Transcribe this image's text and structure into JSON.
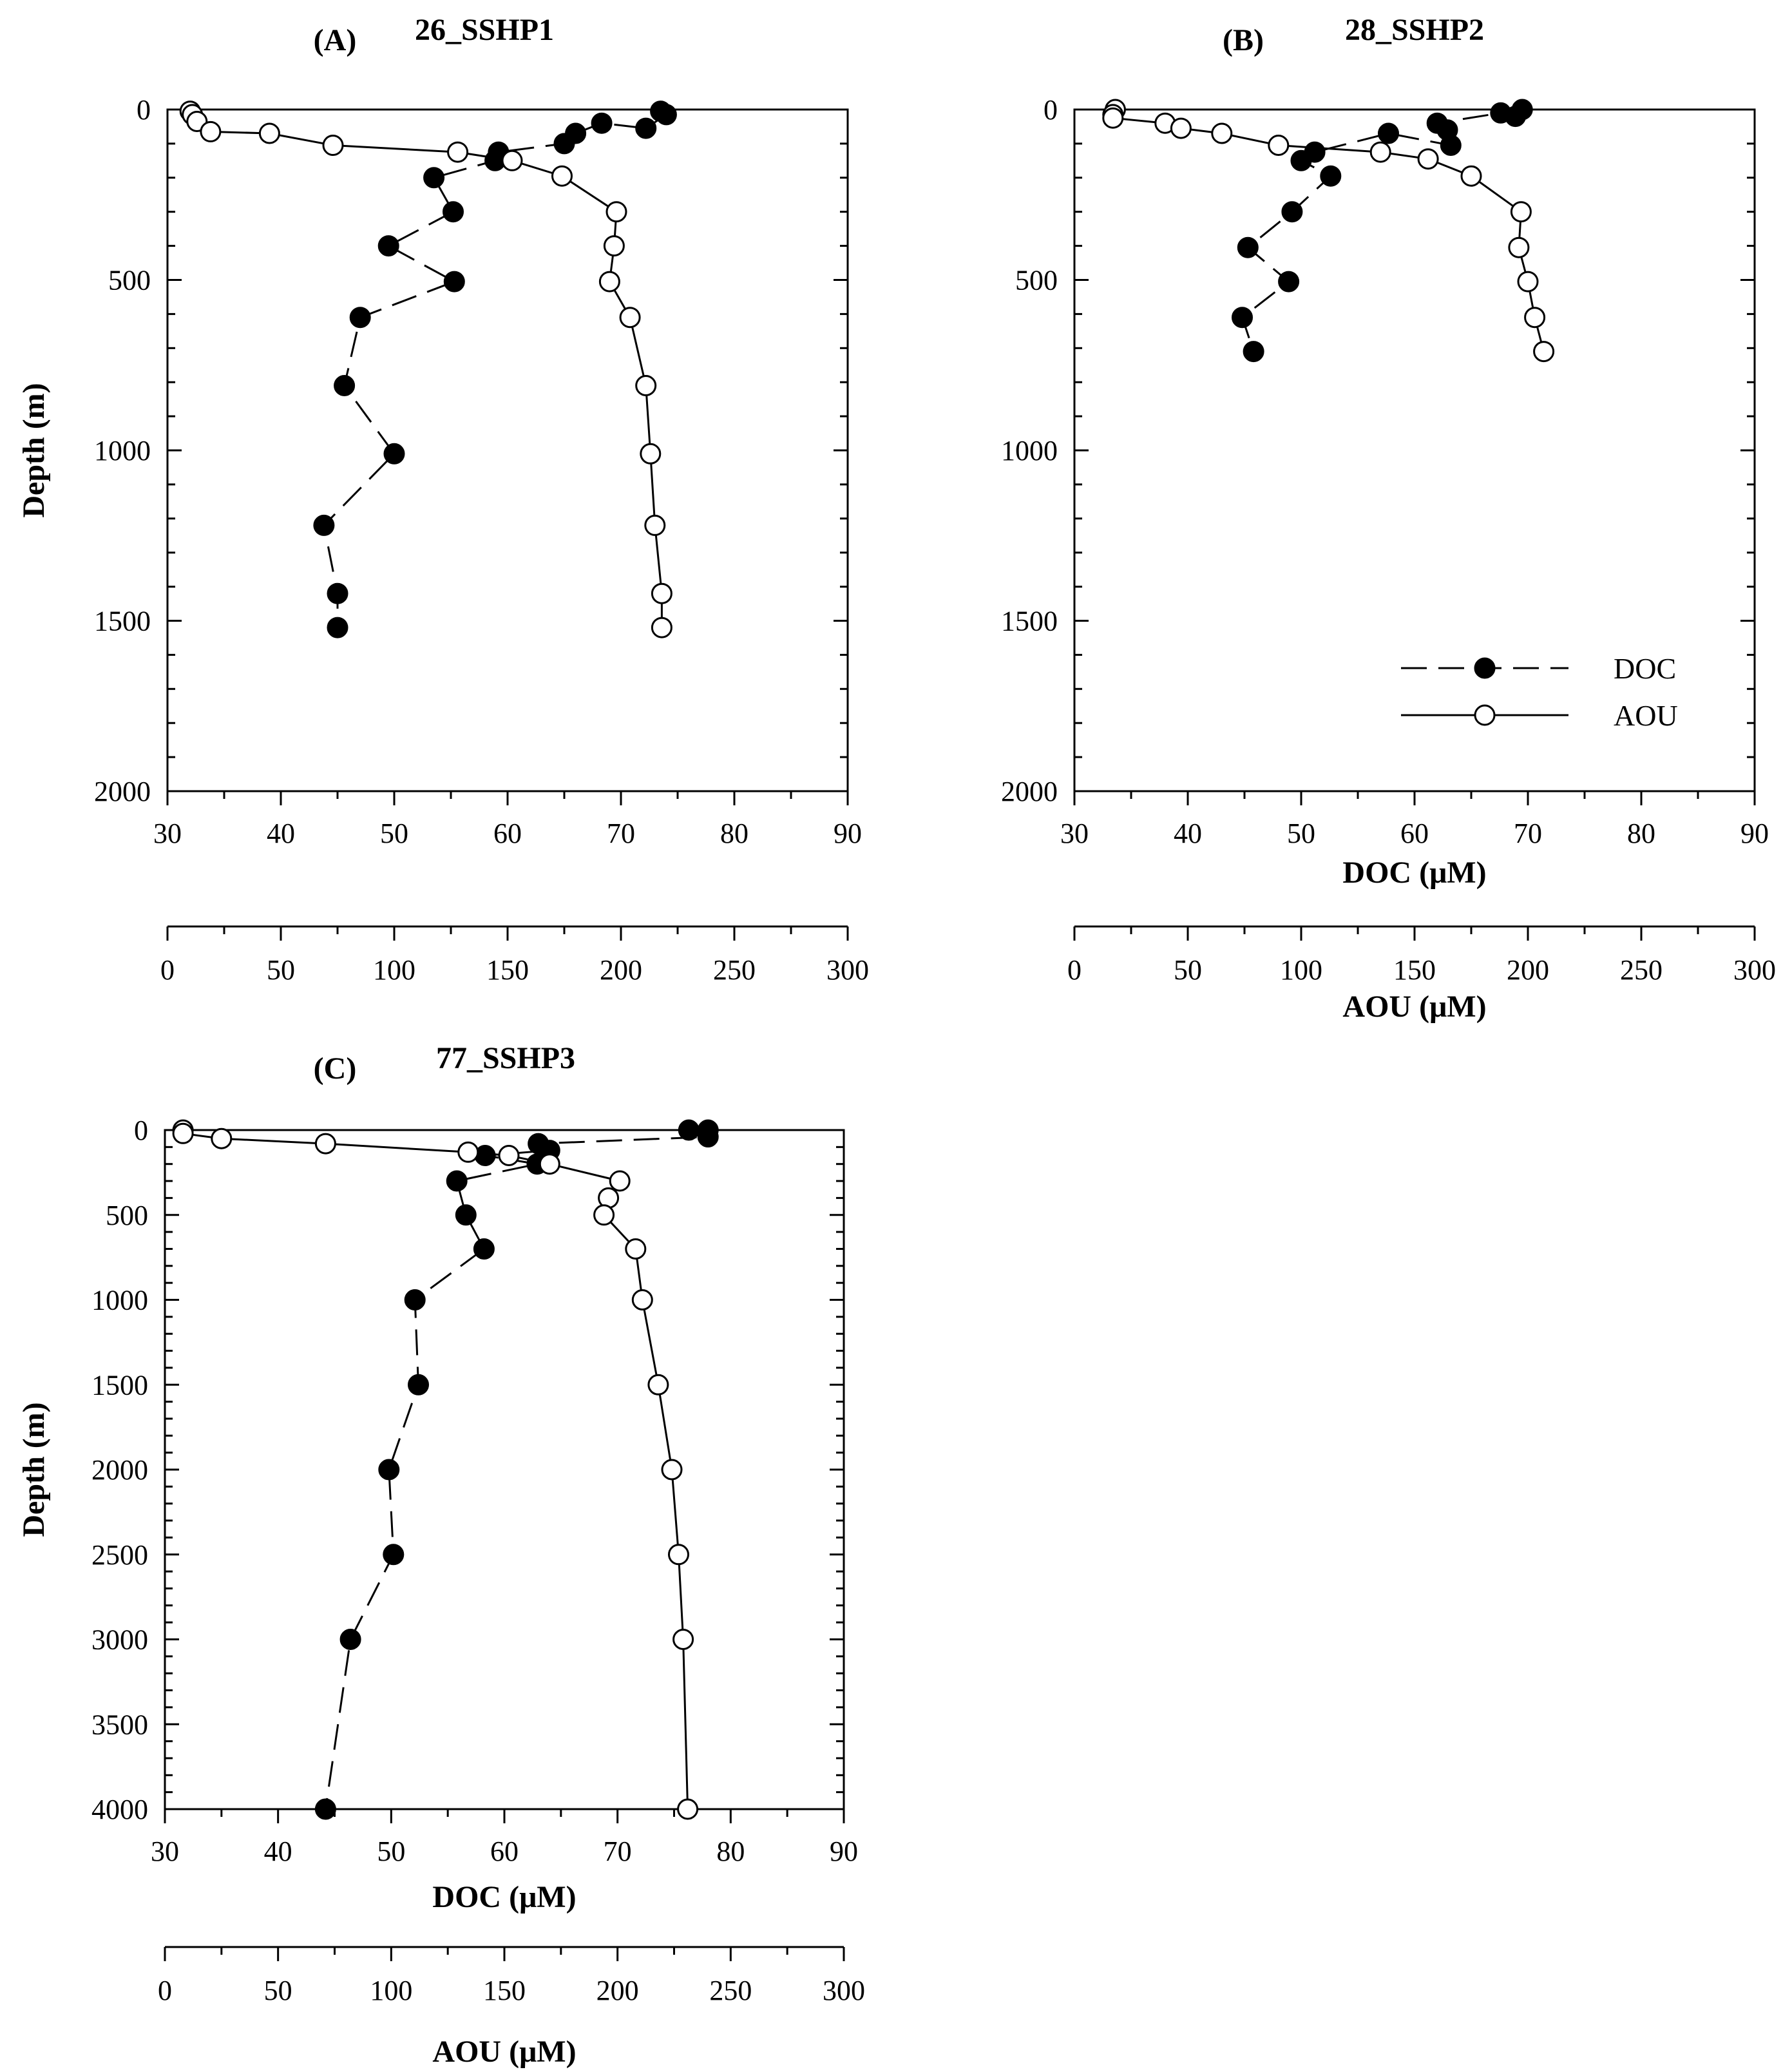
{
  "colors": {
    "ink": "#000000",
    "paper": "#ffffff"
  },
  "legend": [
    {
      "name": "DOC",
      "marker": "filled-circle",
      "line": "dashed"
    },
    {
      "name": "AOU",
      "marker": "open-circle",
      "line": "solid"
    }
  ],
  "chart_data": [
    {
      "type": "scatter",
      "panel_letter": "(A)",
      "title": "26_SSHP1",
      "ylabel": "Depth (m)",
      "xlabel": "",
      "xlabel2": "",
      "ylim": [
        0,
        2000
      ],
      "yinvert": true,
      "yticks": [
        0,
        500,
        1000,
        1500,
        2000
      ],
      "xlim": [
        30,
        90
      ],
      "xticks": [
        30,
        40,
        50,
        60,
        70,
        80,
        90
      ],
      "x2lim": [
        0,
        300
      ],
      "x2ticks": [
        0,
        50,
        100,
        150,
        200,
        250,
        300
      ],
      "series": [
        {
          "name": "DOC",
          "axis": "primary",
          "points": [
            [
              73.5,
              5
            ],
            [
              74,
              15
            ],
            [
              72.2,
              55
            ],
            [
              68.3,
              40
            ],
            [
              66,
              70
            ],
            [
              65,
              100
            ],
            [
              59.2,
              125
            ],
            [
              58.9,
              150
            ],
            [
              53.5,
              200
            ],
            [
              55.2,
              300
            ],
            [
              49.5,
              400
            ],
            [
              55.3,
              505
            ],
            [
              47,
              610
            ],
            [
              45.6,
              810
            ],
            [
              50,
              1010
            ],
            [
              43.8,
              1220
            ],
            [
              45,
              1420
            ],
            [
              45,
              1520
            ]
          ]
        },
        {
          "name": "AOU",
          "axis": "secondary",
          "points": [
            [
              10,
              5
            ],
            [
              11,
              15
            ],
            [
              13,
              35
            ],
            [
              19,
              65
            ],
            [
              45,
              70
            ],
            [
              73,
              105
            ],
            [
              128,
              125
            ],
            [
              152,
              150
            ],
            [
              174,
              195
            ],
            [
              198,
              300
            ],
            [
              197,
              400
            ],
            [
              195,
              505
            ],
            [
              204,
              610
            ],
            [
              211,
              810
            ],
            [
              213,
              1010
            ],
            [
              215,
              1220
            ],
            [
              218,
              1420
            ],
            [
              218,
              1520
            ]
          ]
        }
      ]
    },
    {
      "type": "scatter",
      "panel_letter": "(B)",
      "title": "28_SSHP2",
      "ylabel": "",
      "xlabel": "DOC (μM)",
      "xlabel2": "AOU (μM)",
      "ylim": [
        0,
        2000
      ],
      "yinvert": true,
      "yticks": [
        0,
        500,
        1000,
        1500,
        2000
      ],
      "xlim": [
        30,
        90
      ],
      "xticks": [
        30,
        40,
        50,
        60,
        70,
        80,
        90
      ],
      "x2lim": [
        0,
        300
      ],
      "x2ticks": [
        0,
        50,
        100,
        150,
        200,
        250,
        300
      ],
      "show_legend": true,
      "series": [
        {
          "name": "DOC",
          "axis": "primary",
          "points": [
            [
              69.5,
              0
            ],
            [
              68.9,
              20
            ],
            [
              67.6,
              10
            ],
            [
              62,
              40
            ],
            [
              62.9,
              60
            ],
            [
              63.2,
              105
            ],
            [
              57.7,
              70
            ],
            [
              51.2,
              125
            ],
            [
              50,
              150
            ],
            [
              52.6,
              195
            ],
            [
              49.2,
              300
            ],
            [
              45.3,
              405
            ],
            [
              48.9,
              505
            ],
            [
              44.8,
              610
            ],
            [
              45.8,
              710
            ]
          ]
        },
        {
          "name": "AOU",
          "axis": "secondary",
          "points": [
            [
              18,
              0
            ],
            [
              17,
              15
            ],
            [
              17,
              25
            ],
            [
              40,
              40
            ],
            [
              47,
              55
            ],
            [
              65,
              70
            ],
            [
              90,
              105
            ],
            [
              135,
              125
            ],
            [
              156,
              145
            ],
            [
              175,
              195
            ],
            [
              197,
              300
            ],
            [
              196,
              405
            ],
            [
              200,
              505
            ],
            [
              203,
              610
            ],
            [
              207,
              710
            ]
          ]
        }
      ]
    },
    {
      "type": "scatter",
      "panel_letter": "(C)",
      "title": "77_SSHP3",
      "ylabel": "Depth (m)",
      "xlabel": "DOC (μM)",
      "xlabel2": "AOU (μM)",
      "ylim": [
        0,
        4000
      ],
      "yinvert": true,
      "yticks": [
        0,
        500,
        1000,
        1500,
        2000,
        2500,
        3000,
        3500,
        4000
      ],
      "xlim": [
        30,
        90
      ],
      "xticks": [
        30,
        40,
        50,
        60,
        70,
        80,
        90
      ],
      "x2lim": [
        0,
        300
      ],
      "x2ticks": [
        0,
        50,
        100,
        150,
        200,
        250,
        300
      ],
      "series": [
        {
          "name": "DOC",
          "axis": "primary",
          "points": [
            [
              76.3,
              0
            ],
            [
              78,
              0
            ],
            [
              78,
              40
            ],
            [
              63,
              80
            ],
            [
              64,
              120
            ],
            [
              58.3,
              150
            ],
            [
              62.9,
              200
            ],
            [
              55.8,
              300
            ],
            [
              56.6,
              500
            ],
            [
              58.2,
              700
            ],
            [
              52.1,
              1000
            ],
            [
              52.4,
              1500
            ],
            [
              49.8,
              2000
            ],
            [
              50.2,
              2500
            ],
            [
              46.4,
              3000
            ],
            [
              44.2,
              4000
            ]
          ]
        },
        {
          "name": "AOU",
          "axis": "secondary",
          "points": [
            [
              8,
              0
            ],
            [
              8,
              20
            ],
            [
              25,
              50
            ],
            [
              71,
              80
            ],
            [
              134,
              130
            ],
            [
              152,
              150
            ],
            [
              170,
              200
            ],
            [
              201,
              300
            ],
            [
              196,
              400
            ],
            [
              194,
              500
            ],
            [
              208,
              700
            ],
            [
              211,
              1000
            ],
            [
              218,
              1500
            ],
            [
              224,
              2000
            ],
            [
              227,
              2500
            ],
            [
              229,
              3000
            ],
            [
              231,
              4000
            ]
          ]
        }
      ]
    }
  ]
}
